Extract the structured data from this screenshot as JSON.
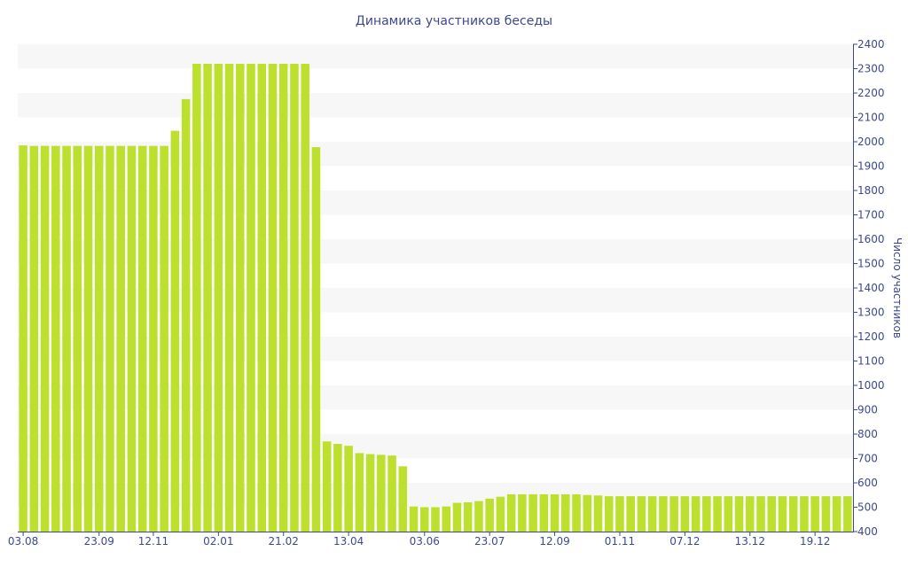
{
  "chart_data": {
    "type": "bar",
    "title": "Динамика участников беседы",
    "xlabel": "",
    "ylabel": "Число участников",
    "ylim": [
      400,
      2400
    ],
    "yticks": [
      400,
      500,
      600,
      700,
      800,
      900,
      1000,
      1100,
      1200,
      1300,
      1400,
      1500,
      1600,
      1700,
      1800,
      1900,
      2000,
      2100,
      2200,
      2300,
      2400
    ],
    "xtick_labels": [
      {
        "index": 0,
        "label": "03.08"
      },
      {
        "index": 7,
        "label": "23.09"
      },
      {
        "index": 12,
        "label": "12.11"
      },
      {
        "index": 18,
        "label": "02.01"
      },
      {
        "index": 24,
        "label": "21.02"
      },
      {
        "index": 30,
        "label": "13.04"
      },
      {
        "index": 37,
        "label": "03.06"
      },
      {
        "index": 43,
        "label": "23.07"
      },
      {
        "index": 49,
        "label": "12.09"
      },
      {
        "index": 55,
        "label": "01.11"
      },
      {
        "index": 61,
        "label": "07.12"
      },
      {
        "index": 67,
        "label": "13.12"
      },
      {
        "index": 73,
        "label": "19.12"
      }
    ],
    "values": [
      1985,
      1983,
      1983,
      1983,
      1983,
      1983,
      1983,
      1983,
      1983,
      1983,
      1983,
      1983,
      1983,
      1983,
      2045,
      2175,
      2320,
      2320,
      2320,
      2320,
      2320,
      2320,
      2320,
      2320,
      2320,
      2320,
      2320,
      1978,
      770,
      760,
      752,
      722,
      718,
      715,
      712,
      668,
      503,
      500,
      500,
      503,
      518,
      520,
      525,
      535,
      543,
      553,
      553,
      553,
      553,
      553,
      553,
      553,
      550,
      548,
      545,
      545,
      545,
      545,
      545,
      545,
      545,
      545,
      545,
      545,
      545,
      545,
      545,
      545,
      545,
      545,
      545,
      545,
      545,
      545,
      545,
      545,
      545
    ],
    "grid": true,
    "bar_color": "#bde02f",
    "band_color": "#f7f7f7",
    "axis_color": "#3c4a8c"
  }
}
